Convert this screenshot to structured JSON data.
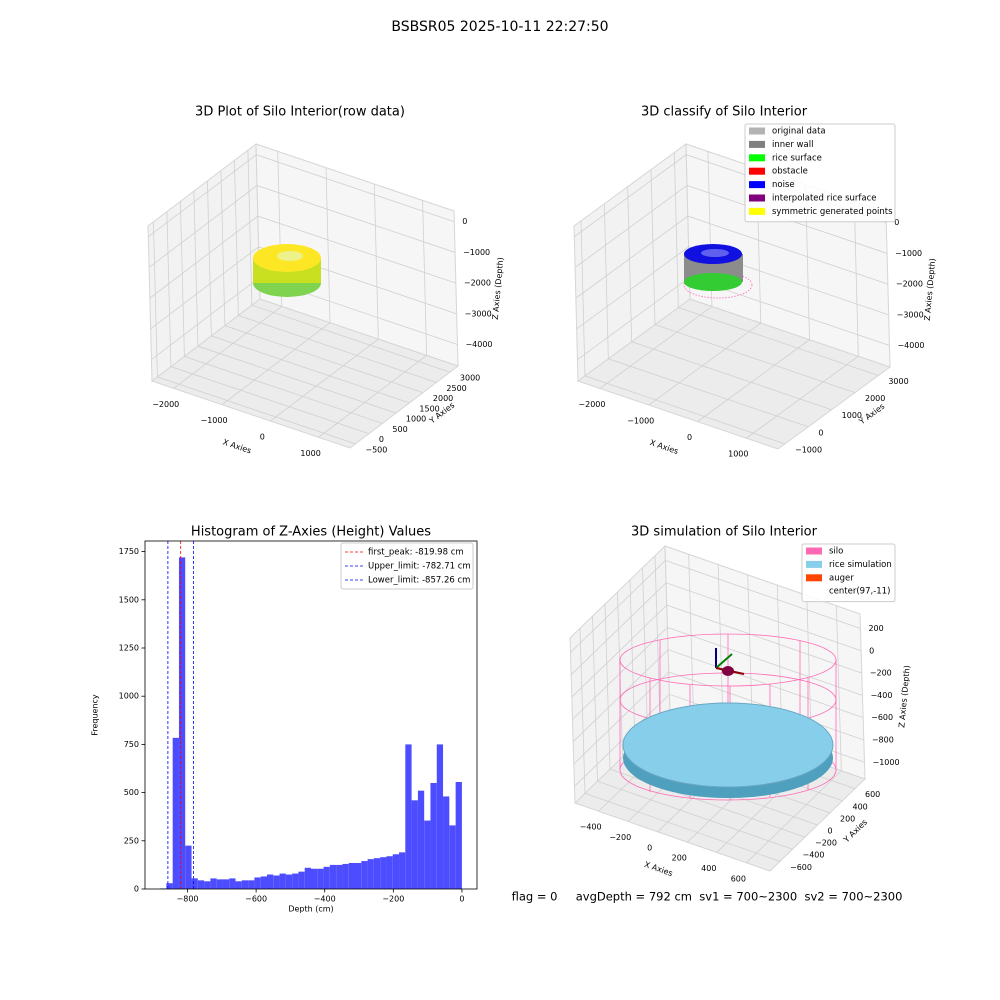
{
  "suptitle": "BSBSR05 2025-10-11 22:27:50",
  "footer": "flag = 0     avgDepth = 792 cm  sv1 = 700~2300  sv2 = 700~2300",
  "chart_data": [
    {
      "type": "scatter3d",
      "title": "3D Plot of Silo Interior(row data)",
      "xlabel": "X Axies",
      "ylabel": "Y Axies",
      "zlabel": "Z Axies (Depth)",
      "xlim": [
        -2450,
        1650
      ],
      "ylim": [
        -700,
        3300
      ],
      "zlim": [
        -4700,
        350
      ],
      "xticks": [
        {
          "value": -2000,
          "label": "−2000"
        },
        {
          "value": -1000,
          "label": "−1000"
        },
        0,
        1000
      ],
      "yticks": [
        {
          "value": -500,
          "label": "−500"
        },
        0,
        500,
        1000,
        1500,
        2000,
        2500,
        3000
      ],
      "zticks": [
        0,
        {
          "value": -1000,
          "label": "−1000"
        },
        {
          "value": -2000,
          "label": "−2000"
        },
        {
          "value": -3000,
          "label": "−3000"
        },
        {
          "value": -4000,
          "label": "−4000"
        }
      ]
    },
    {
      "type": "scatter3d",
      "title": "3D classify of Silo Interior",
      "xlabel": "X Axies",
      "ylabel": "Y Axies",
      "zlabel": "Z Axies (Depth)",
      "xlim": [
        -2450,
        1650
      ],
      "ylim": [
        -1300,
        3500
      ],
      "zlim": [
        -4700,
        350
      ],
      "xticks": [
        {
          "value": -2000,
          "label": "−2000"
        },
        {
          "value": -1000,
          "label": "−1000"
        },
        0,
        1000
      ],
      "yticks": [
        {
          "value": -1000,
          "label": "−1000"
        },
        0,
        1000,
        2000,
        3000
      ],
      "zticks": [
        0,
        {
          "value": -1000,
          "label": "−1000"
        },
        {
          "value": -2000,
          "label": "−2000"
        },
        {
          "value": -3000,
          "label": "−3000"
        },
        {
          "value": -4000,
          "label": "−4000"
        }
      ],
      "legend": [
        {
          "name": "original data",
          "color": "#b3b3b3"
        },
        {
          "name": "inner wall",
          "color": "#808080"
        },
        {
          "name": "rice surface",
          "color": "#00ff00"
        },
        {
          "name": "obstacle",
          "color": "#ff0000"
        },
        {
          "name": "noise",
          "color": "#0000ff"
        },
        {
          "name": "interpolated rice surface",
          "color": "#800080"
        },
        {
          "name": "symmetric generated points",
          "color": "#ffff00"
        }
      ]
    },
    {
      "type": "histogram",
      "title": "Histogram of Z-Axies (Height) Values",
      "xlabel": "Depth (cm)",
      "ylabel": "Frequency",
      "color": "#4d4dff",
      "bins": [
        -880,
        -861.7,
        -843.3,
        -825,
        -806.7,
        -788.3,
        -770,
        -751.7,
        -733.3,
        -715,
        -696.7,
        -678.3,
        -660,
        -641.7,
        -623.3,
        -605,
        -586.7,
        -568.3,
        -550,
        -531.7,
        -513.3,
        -495,
        -476.7,
        -458.3,
        -440,
        -421.7,
        -403.3,
        -385,
        -366.7,
        -348.3,
        -330,
        -311.7,
        -293.3,
        -275,
        -256.7,
        -238.3,
        -220,
        -201.7,
        -183.3,
        -165,
        -146.7,
        -128.3,
        -110,
        -91.7,
        -73.3,
        -55,
        -36.7,
        -18.3,
        0
      ],
      "values": [
        3,
        30,
        784,
        1720,
        225,
        55,
        45,
        40,
        55,
        50,
        50,
        55,
        40,
        45,
        45,
        60,
        65,
        75,
        70,
        80,
        75,
        80,
        90,
        110,
        105,
        105,
        115,
        125,
        125,
        130,
        135,
        135,
        145,
        155,
        160,
        165,
        170,
        180,
        190,
        750,
        460,
        510,
        355,
        550,
        750,
        480,
        330,
        555
      ],
      "xlim": [
        -924,
        44
      ],
      "ylim": [
        0,
        1805
      ],
      "xticks": [
        {
          "value": -800,
          "label": "−800"
        },
        {
          "value": -600,
          "label": "−600"
        },
        {
          "value": -400,
          "label": "−400"
        },
        {
          "value": -200,
          "label": "−200"
        },
        0
      ],
      "yticks": [
        0,
        250,
        500,
        750,
        1000,
        1250,
        1500,
        1750
      ],
      "vlines": [
        {
          "value": -819.98,
          "label": "first_peak: -819.98 cm",
          "color": "#ff0000"
        },
        {
          "value": -782.71,
          "label": "Upper_limit: -782.71 cm",
          "color": "#0000ff"
        },
        {
          "value": -857.26,
          "label": "Lower_limit: -857.26 cm",
          "color": "#0000ff"
        }
      ]
    },
    {
      "type": "scatter3d",
      "title": "3D simulation of Silo Interior",
      "xlabel": "X Axies",
      "ylabel": "Y Axies",
      "zlabel": "Z Axies (Depth)",
      "xlim": [
        -560,
        760
      ],
      "ylim": [
        -760,
        760
      ],
      "zlim": [
        -1150,
        330
      ],
      "xticks": [
        {
          "value": -400,
          "label": "−400"
        },
        {
          "value": -200,
          "label": "−200"
        },
        0,
        200,
        400,
        600
      ],
      "yticks": [
        {
          "value": -600,
          "label": "−600"
        },
        {
          "value": -400,
          "label": "−400"
        },
        {
          "value": -200,
          "label": "−200"
        },
        0,
        200,
        400,
        600
      ],
      "zticks": [
        200,
        0,
        {
          "value": -200,
          "label": "−200"
        },
        {
          "value": -400,
          "label": "−400"
        },
        {
          "value": -600,
          "label": "−600"
        },
        {
          "value": -800,
          "label": "−800"
        },
        {
          "value": -1000,
          "label": "−1000"
        }
      ],
      "legend": [
        {
          "name": "silo",
          "color": "#ff69b4"
        },
        {
          "name": "rice simulation",
          "color": "#87ceeb"
        },
        {
          "name": "auger",
          "color": "#ff4500"
        },
        {
          "name": "center(97,-11)",
          "color": "#ffffff"
        }
      ]
    }
  ]
}
